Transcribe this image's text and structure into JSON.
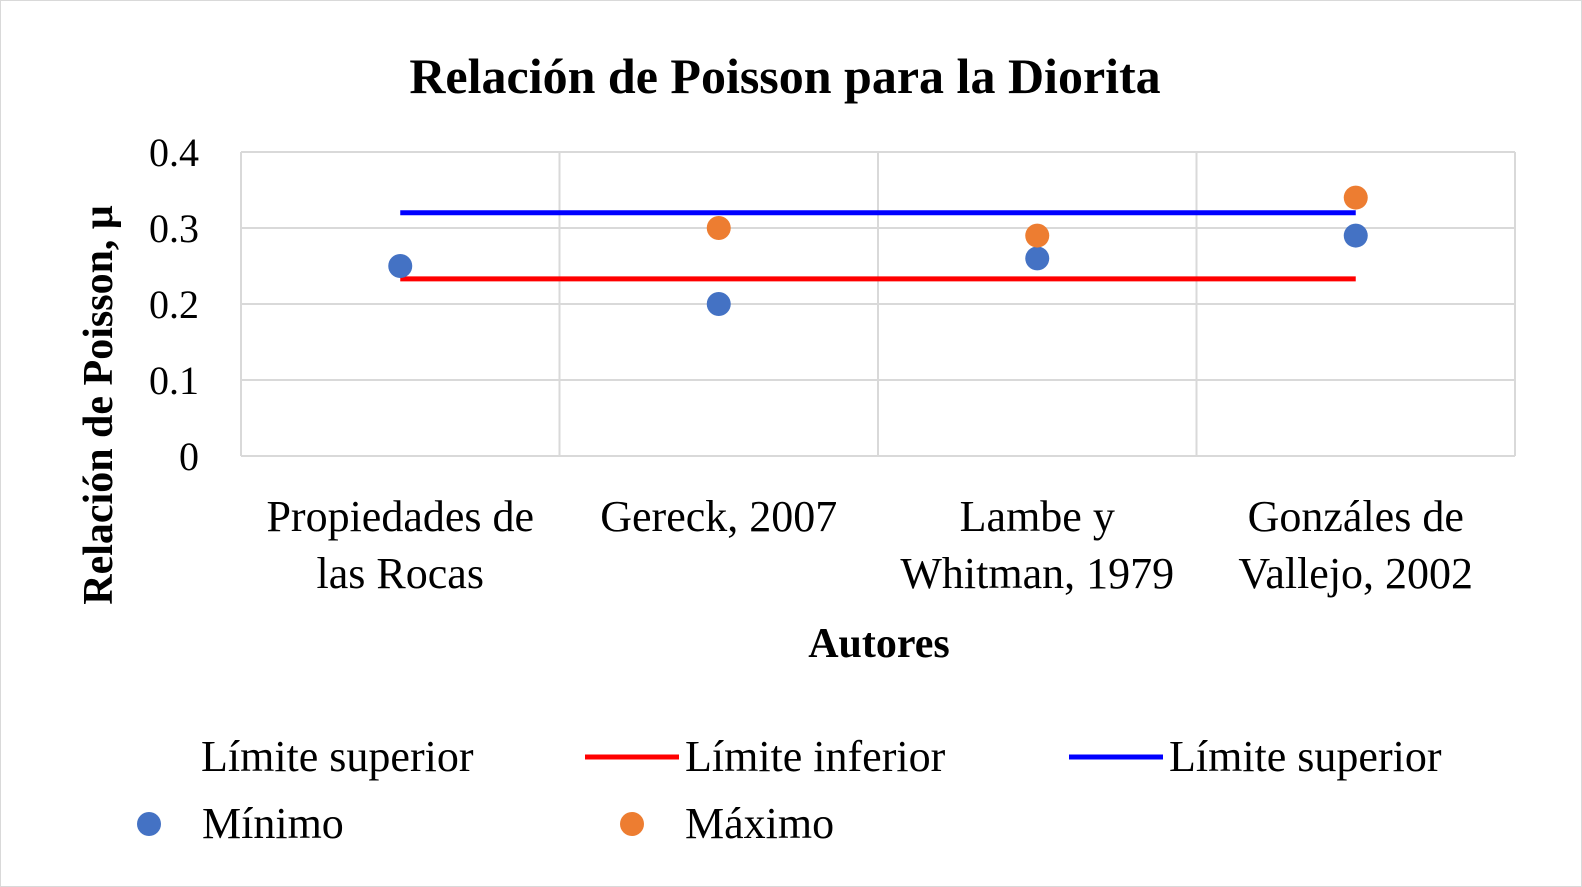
{
  "chart_data": {
    "type": "scatter",
    "title": "Relación de Poisson para la Diorita",
    "xlabel": "Autores",
    "ylabel": "Relación de Poisson, μ",
    "categories": [
      [
        "Propiedades de",
        "las Rocas"
      ],
      [
        "Gereck, 2007"
      ],
      [
        "Lambe y",
        "Whitman, 1979"
      ],
      [
        "Gonzáles de",
        "Vallejo, 2002"
      ]
    ],
    "ylim": [
      0,
      0.4
    ],
    "yticks": [
      "0",
      "0.1",
      "0.2",
      "0.3",
      "0.4"
    ],
    "grid": true,
    "series": [
      {
        "name": "Mínimo",
        "kind": "scatter",
        "color": "#4472c4",
        "values": [
          0.25,
          0.2,
          0.26,
          0.29
        ]
      },
      {
        "name": "Máximo",
        "kind": "scatter",
        "color": "#ed7d31",
        "values": [
          null,
          0.3,
          0.29,
          0.34
        ]
      },
      {
        "name": "Límite  inferior",
        "kind": "line",
        "color": "#ff0000",
        "values": [
          0.233,
          0.233,
          0.233,
          0.233
        ]
      },
      {
        "name": "Límite  superior",
        "kind": "line",
        "color": "#0000ff",
        "values": [
          0.32,
          0.32,
          0.32,
          0.32
        ]
      }
    ],
    "legend": {
      "placement": "bottom",
      "extra_label": "Límite  superior"
    }
  }
}
